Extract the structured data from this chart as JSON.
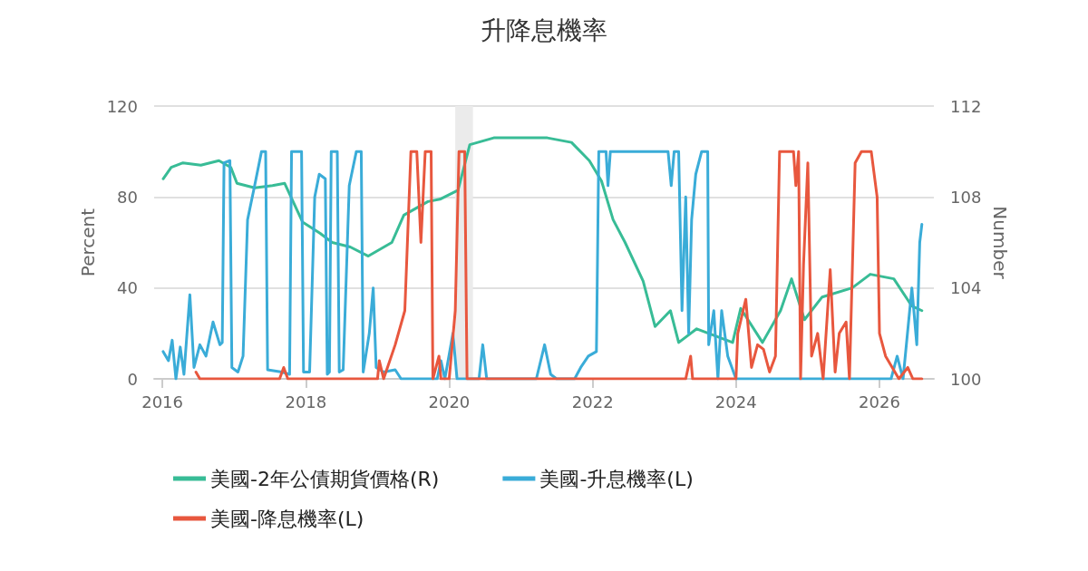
{
  "chart_data": {
    "type": "line",
    "title": "升降息機率",
    "ylabel": "Percent",
    "y2label": "Number",
    "xlim": [
      "2015-11-20",
      "2026-10-05"
    ],
    "xticks": [
      "2016",
      "2018",
      "2020",
      "2022",
      "2024",
      "2026"
    ],
    "ylim": [
      0,
      120
    ],
    "yticks": [
      0,
      40,
      80,
      120
    ],
    "y2lim": [
      100,
      112
    ],
    "y2ticks": [
      100,
      104,
      108,
      112
    ],
    "grid": "y",
    "legend": "bottom",
    "marker": "none",
    "line_style": "solid",
    "bands": [
      {
        "axis": "x",
        "from": "2020-02",
        "to": "2020-05",
        "color": "#ebebeb"
      }
    ],
    "series": [
      {
        "name": "美國-2年公債期貨價格(R)",
        "color": "#38bc96",
        "axis": "y2",
        "x": [
          "2016-01-05",
          "2016-02-15",
          "2016-04-15",
          "2016-07-15",
          "2016-10-15",
          "2016-12-15",
          "2017-01-15",
          "2017-04-15",
          "2017-07-15",
          "2017-09-15",
          "2017-12-15",
          "2018-03-15",
          "2018-05-15",
          "2018-08-15",
          "2018-11-15",
          "2019-03-15",
          "2019-05-15",
          "2019-09-15",
          "2019-11-15",
          "2020-02-15",
          "2020-04-15",
          "2020-08-15",
          "2021-01-15",
          "2021-05-15",
          "2021-09-15",
          "2021-12-15",
          "2022-02-15",
          "2022-04-15",
          "2022-06-15",
          "2022-09-15",
          "2022-11-15",
          "2023-02-01",
          "2023-03-15",
          "2023-06-15",
          "2023-09-15",
          "2023-12-15",
          "2024-01-25",
          "2024-05-15",
          "2024-08-15",
          "2024-10-10",
          "2024-12-15",
          "2025-03-15",
          "2025-08-15",
          "2025-11-15",
          "2026-03-15",
          "2026-06-15",
          "2026-08-05"
        ],
        "values": [
          108.8,
          109.3,
          109.5,
          109.4,
          109.6,
          109.3,
          108.6,
          108.4,
          108.5,
          108.6,
          106.9,
          106.4,
          106.0,
          105.8,
          105.4,
          106.0,
          107.2,
          107.8,
          107.9,
          108.3,
          110.3,
          110.6,
          110.6,
          110.6,
          110.4,
          109.6,
          108.7,
          107.0,
          106.0,
          104.3,
          102.3,
          103.0,
          101.6,
          102.2,
          101.9,
          101.6,
          103.1,
          101.6,
          103.0,
          104.4,
          102.6,
          103.6,
          104.0,
          104.6,
          104.4,
          103.2,
          103.0
        ]
      },
      {
        "name": "美國-升息機率(L)",
        "color": "#3aacd8",
        "x": [
          "2016-01-05",
          "2016-02-01",
          "2016-02-20",
          "2016-03-10",
          "2016-04-01",
          "2016-04-20",
          "2016-05-20",
          "2016-06-10",
          "2016-07-10",
          "2016-08-10",
          "2016-09-15",
          "2016-10-20",
          "2016-11-01",
          "2016-11-10",
          "2016-12-10",
          "2016-12-20",
          "2017-01-20",
          "2017-02-15",
          "2017-03-10",
          "2017-04-15",
          "2017-05-20",
          "2017-06-10",
          "2017-06-20",
          "2017-09-01",
          "2017-10-10",
          "2017-10-20",
          "2017-12-10",
          "2017-12-20",
          "2018-01-20",
          "2018-02-15",
          "2018-03-10",
          "2018-04-10",
          "2018-04-20",
          "2018-05-01",
          "2018-05-10",
          "2018-06-10",
          "2018-06-20",
          "2018-07-10",
          "2018-08-10",
          "2018-09-15",
          "2018-10-10",
          "2018-10-20",
          "2018-11-20",
          "2018-12-10",
          "2018-12-25",
          "2019-02-01",
          "2019-04-01",
          "2019-05-01",
          "2019-11-01",
          "2019-11-20",
          "2019-12-10",
          "2020-01-20",
          "2020-02-10",
          "2020-06-01",
          "2020-06-20",
          "2020-07-10",
          "2021-03-20",
          "2021-05-01",
          "2021-06-01",
          "2021-07-01",
          "2021-10-01",
          "2021-11-01",
          "2021-12-10",
          "2022-01-20",
          "2022-02-01",
          "2022-03-10",
          "2022-03-20",
          "2022-04-01",
          "2023-01-20",
          "2023-02-05",
          "2023-02-20",
          "2023-03-15",
          "2023-04-01",
          "2023-04-20",
          "2023-05-05",
          "2023-05-20",
          "2023-06-10",
          "2023-07-10",
          "2023-08-10",
          "2023-08-15",
          "2023-09-10",
          "2023-10-01",
          "2023-10-20",
          "2023-11-20",
          "2024-01-01",
          "2026-03-01",
          "2026-04-01",
          "2026-05-01",
          "2026-06-15",
          "2026-07-10",
          "2026-07-25",
          "2026-08-05"
        ],
        "values": [
          12,
          8,
          17,
          0,
          14,
          2,
          37,
          5,
          15,
          10,
          25,
          15,
          16,
          95,
          96,
          5,
          3,
          10,
          70,
          85,
          100,
          100,
          4,
          3,
          2,
          100,
          100,
          3,
          3,
          80,
          90,
          88,
          2,
          3,
          100,
          100,
          3,
          4,
          85,
          100,
          100,
          3,
          20,
          40,
          5,
          3,
          4,
          0,
          0,
          8,
          0,
          20,
          0,
          0,
          15,
          0,
          0,
          15,
          2,
          0,
          0,
          5,
          10,
          12,
          100,
          100,
          85,
          100,
          100,
          85,
          100,
          100,
          30,
          80,
          20,
          70,
          90,
          100,
          100,
          15,
          30,
          0,
          30,
          10,
          0,
          0,
          10,
          0,
          40,
          15,
          60,
          68
        ]
      },
      {
        "name": "美國-降息機率(L)",
        "color": "#e8573e",
        "x": [
          "2016-06-20",
          "2016-07-10",
          "2017-08-20",
          "2017-09-10",
          "2017-10-01",
          "2019-01-01",
          "2019-01-10",
          "2019-02-01",
          "2019-04-01",
          "2019-05-20",
          "2019-06-20",
          "2019-07-20",
          "2019-08-10",
          "2019-09-01",
          "2019-10-01",
          "2019-10-10",
          "2019-11-10",
          "2019-11-20",
          "2020-01-01",
          "2020-02-01",
          "2020-02-20",
          "2020-03-20",
          "2020-04-01",
          "2023-04-20",
          "2023-05-15",
          "2023-05-25",
          "2024-01-01",
          "2024-01-10",
          "2024-02-20",
          "2024-03-20",
          "2024-04-20",
          "2024-05-20",
          "2024-06-20",
          "2024-07-20",
          "2024-08-10",
          "2024-10-20",
          "2024-11-01",
          "2024-11-15",
          "2024-11-25",
          "2024-12-10",
          "2025-01-01",
          "2025-01-20",
          "2025-02-20",
          "2025-03-20",
          "2025-04-25",
          "2025-05-20",
          "2025-06-10",
          "2025-07-15",
          "2025-08-01",
          "2025-08-30",
          "2025-10-01",
          "2025-11-20",
          "2025-12-20",
          "2026-01-01",
          "2026-02-01",
          "2026-04-10",
          "2026-05-25",
          "2026-06-20",
          "2026-08-05"
        ],
        "values": [
          3,
          0,
          0,
          5,
          0,
          0,
          8,
          0,
          15,
          30,
          100,
          100,
          60,
          100,
          100,
          0,
          10,
          0,
          0,
          30,
          100,
          100,
          0,
          0,
          10,
          0,
          0,
          20,
          35,
          5,
          15,
          13,
          3,
          10,
          100,
          100,
          85,
          100,
          0,
          50,
          95,
          10,
          20,
          0,
          48,
          3,
          20,
          25,
          0,
          95,
          100,
          100,
          80,
          20,
          10,
          0,
          5,
          0,
          0
        ]
      }
    ]
  }
}
